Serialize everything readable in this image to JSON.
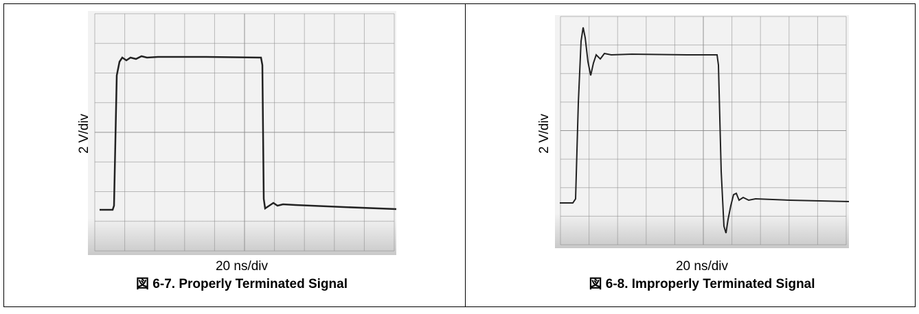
{
  "figures": [
    {
      "y_label": "2 V/div",
      "x_label": "20 ns/div",
      "caption": "図 6-7. Properly Terminated Signal"
    },
    {
      "y_label": "2 V/div",
      "x_label": "20 ns/div",
      "caption": "図 6-8. Improperly Terminated Signal"
    }
  ]
}
